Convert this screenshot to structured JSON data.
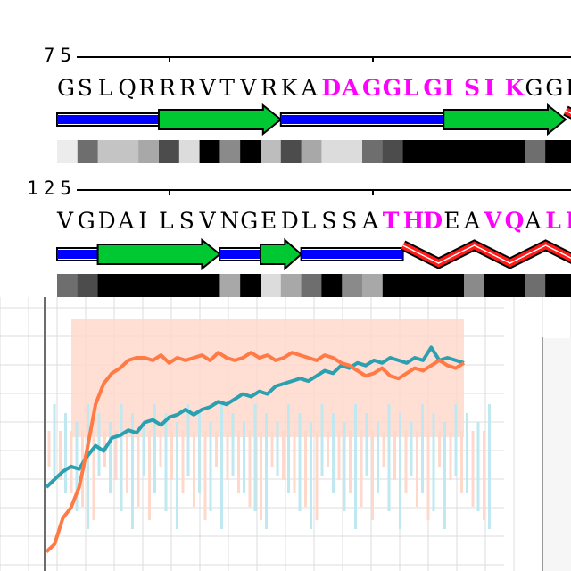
{
  "rows": [
    {
      "number": "75",
      "residues": [
        {
          "c": "G",
          "hl": false
        },
        {
          "c": "S",
          "hl": false
        },
        {
          "c": "L",
          "hl": false
        },
        {
          "c": "Q",
          "hl": false
        },
        {
          "c": "R",
          "hl": false
        },
        {
          "c": "R",
          "hl": false
        },
        {
          "c": "R",
          "hl": false
        },
        {
          "c": "V",
          "hl": false
        },
        {
          "c": "T",
          "hl": false
        },
        {
          "c": "V",
          "hl": false
        },
        {
          "c": "R",
          "hl": false
        },
        {
          "c": "K",
          "hl": false
        },
        {
          "c": "A",
          "hl": false
        },
        {
          "c": "D",
          "hl": true
        },
        {
          "c": "A",
          "hl": true
        },
        {
          "c": "G",
          "hl": true
        },
        {
          "c": "G",
          "hl": true
        },
        {
          "c": "L",
          "hl": true
        },
        {
          "c": "G",
          "hl": true
        },
        {
          "c": "I",
          "hl": true
        },
        {
          "c": "S",
          "hl": true
        },
        {
          "c": "I",
          "hl": true
        },
        {
          "c": "K",
          "hl": true
        },
        {
          "c": "G",
          "hl": false
        },
        {
          "c": "G",
          "hl": false
        },
        {
          "c": "I",
          "hl": false
        }
      ],
      "structure": [
        {
          "type": "coil",
          "from": 0,
          "to": 5
        },
        {
          "type": "strand",
          "from": 5,
          "to": 11
        },
        {
          "type": "coil",
          "from": 11,
          "to": 19
        },
        {
          "type": "strand",
          "from": 19,
          "to": 25
        },
        {
          "type": "helix",
          "from": 25,
          "to": 26
        }
      ],
      "shades": [
        "#ececec",
        "#6e6e6e",
        "#c4c4c4",
        "#c4c4c4",
        "#a8a8a8",
        "#4c4c4c",
        "#dcdcdc",
        "#000000",
        "#8a8a8a",
        "#000000",
        "#bdbdbd",
        "#4c4c4c",
        "#a8a8a8",
        "#dcdcdc",
        "#dcdcdc",
        "#6e6e6e",
        "#4c4c4c",
        "#000000",
        "#000000",
        "#000000",
        "#000000",
        "#000000",
        "#000000",
        "#6e6e6e",
        "#000000",
        "#000000"
      ]
    },
    {
      "number": "125",
      "residues": [
        {
          "c": "V",
          "hl": false
        },
        {
          "c": "G",
          "hl": false
        },
        {
          "c": "D",
          "hl": false
        },
        {
          "c": "A",
          "hl": false
        },
        {
          "c": "I",
          "hl": false
        },
        {
          "c": "L",
          "hl": false
        },
        {
          "c": "S",
          "hl": false
        },
        {
          "c": "V",
          "hl": false
        },
        {
          "c": "N",
          "hl": false
        },
        {
          "c": "G",
          "hl": false
        },
        {
          "c": "E",
          "hl": false
        },
        {
          "c": "D",
          "hl": false
        },
        {
          "c": "L",
          "hl": false
        },
        {
          "c": "S",
          "hl": false
        },
        {
          "c": "S",
          "hl": false
        },
        {
          "c": "A",
          "hl": false
        },
        {
          "c": "T",
          "hl": true
        },
        {
          "c": "H",
          "hl": true
        },
        {
          "c": "D",
          "hl": true
        },
        {
          "c": "E",
          "hl": false
        },
        {
          "c": "A",
          "hl": false
        },
        {
          "c": "V",
          "hl": true
        },
        {
          "c": "Q",
          "hl": true
        },
        {
          "c": "A",
          "hl": false
        },
        {
          "c": "L",
          "hl": true
        },
        {
          "c": "L",
          "hl": true
        }
      ],
      "structure": [
        {
          "type": "coil",
          "from": 0,
          "to": 2
        },
        {
          "type": "strand",
          "from": 2,
          "to": 8
        },
        {
          "type": "coil",
          "from": 8,
          "to": 10
        },
        {
          "type": "strand",
          "from": 10,
          "to": 12
        },
        {
          "type": "coil",
          "from": 12,
          "to": 17
        },
        {
          "type": "helix",
          "from": 17,
          "to": 26
        }
      ],
      "shades": [
        "#6e6e6e",
        "#4c4c4c",
        "#000000",
        "#000000",
        "#000000",
        "#000000",
        "#000000",
        "#000000",
        "#a8a8a8",
        "#000000",
        "#dcdcdc",
        "#a8a8a8",
        "#6e6e6e",
        "#000000",
        "#8a8a8a",
        "#a8a8a8",
        "#000000",
        "#000000",
        "#000000",
        "#000000",
        "#8a8a8a",
        "#000000",
        "#000000",
        "#6e6e6e",
        "#000000",
        "#000000"
      ]
    }
  ],
  "colors": {
    "highlight": "#ff00ff",
    "coil": "#0000ff",
    "strand": "#00c832",
    "helix": "#ff1a1a",
    "series_orange": "#ff7a45",
    "series_teal": "#2aa0b0",
    "band_orange": "#ffd8cc",
    "band_teal": "#bfe8f0"
  },
  "plot": {
    "orange": [
      0.05,
      0.08,
      0.18,
      0.22,
      0.3,
      0.45,
      0.62,
      0.7,
      0.74,
      0.76,
      0.79,
      0.8,
      0.8,
      0.79,
      0.81,
      0.78,
      0.8,
      0.79,
      0.8,
      0.81,
      0.79,
      0.82,
      0.8,
      0.79,
      0.8,
      0.82,
      0.8,
      0.81,
      0.79,
      0.8,
      0.82,
      0.81,
      0.8,
      0.79,
      0.81,
      0.8,
      0.78,
      0.77,
      0.75,
      0.73,
      0.74,
      0.76,
      0.73,
      0.72,
      0.74,
      0.76,
      0.75,
      0.77,
      0.79,
      0.77,
      0.76,
      0.78
    ],
    "teal": [
      0.3,
      0.33,
      0.36,
      0.38,
      0.37,
      0.42,
      0.46,
      0.44,
      0.49,
      0.5,
      0.52,
      0.51,
      0.55,
      0.56,
      0.54,
      0.57,
      0.58,
      0.6,
      0.58,
      0.6,
      0.61,
      0.63,
      0.62,
      0.64,
      0.66,
      0.65,
      0.67,
      0.66,
      0.69,
      0.7,
      0.71,
      0.72,
      0.71,
      0.73,
      0.75,
      0.74,
      0.77,
      0.76,
      0.78,
      0.77,
      0.79,
      0.78,
      0.8,
      0.79,
      0.78,
      0.8,
      0.79,
      0.84,
      0.79,
      0.8,
      0.79,
      0.78
    ]
  }
}
